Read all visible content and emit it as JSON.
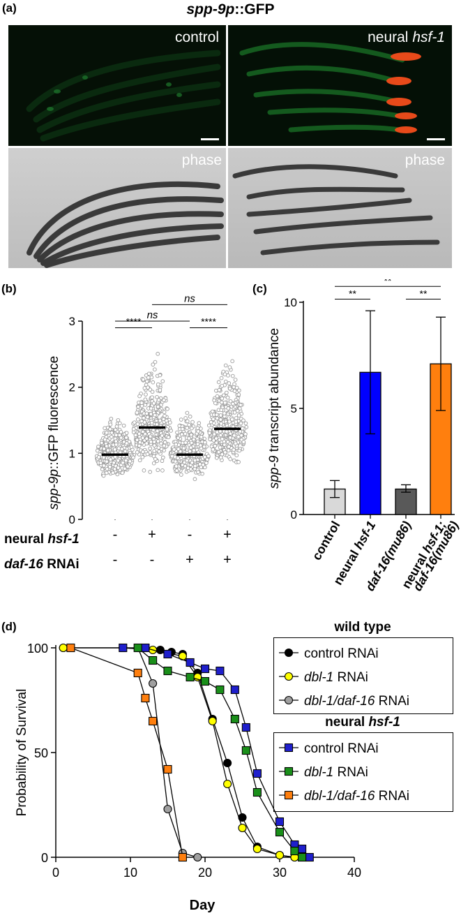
{
  "panel_a": {
    "letter": "(a)",
    "title_italic": "spp-9p",
    "title_rest": "::GFP",
    "label_control": "control",
    "label_neural_prefix": "neural ",
    "label_neural_gene": "hsf-1",
    "label_phase_left": "phase",
    "label_phase_right": "phase"
  },
  "panel_b": {
    "letter": "(b)",
    "chart_data": {
      "type": "scatter",
      "ylabel_italic": "spp-9p",
      "ylabel_rest": "::GFP fluorescence",
      "ylim": [
        0,
        3
      ],
      "yticks": [
        "0",
        "1",
        "2",
        "3"
      ],
      "groups": [
        {
          "neural_hsf1": "-",
          "daf16_rnai": "-",
          "median": 0.98,
          "range": [
            0.6,
            1.66
          ]
        },
        {
          "neural_hsf1": "+",
          "daf16_rnai": "-",
          "median": 1.39,
          "range": [
            0.65,
            2.65
          ]
        },
        {
          "neural_hsf1": "-",
          "daf16_rnai": "+",
          "median": 0.98,
          "range": [
            0.59,
            1.76
          ]
        },
        {
          "neural_hsf1": "+",
          "daf16_rnai": "+",
          "median": 1.37,
          "range": [
            0.7,
            2.57
          ]
        }
      ],
      "row_label_1_prefix": "neural ",
      "row_label_1_gene": "hsf-1",
      "row_label_2_gene": "daf-16",
      "row_label_2_rest": " RNAi",
      "significance": [
        {
          "from": 0,
          "to": 1,
          "label": "****",
          "y": 2.9
        },
        {
          "from": 0,
          "to": 2,
          "label": "ns",
          "y": 3.0
        },
        {
          "from": 1,
          "to": 3,
          "label": "ns",
          "y": 3.25
        },
        {
          "from": 2,
          "to": 3,
          "label": "****",
          "y": 2.9
        }
      ]
    }
  },
  "panel_c": {
    "letter": "(c)",
    "chart_data": {
      "type": "bar",
      "ylabel_italic": "spp-9",
      "ylabel_rest": " transcript abundance",
      "ylim": [
        0,
        10
      ],
      "yticks": [
        "0",
        "5",
        "10"
      ],
      "bars": [
        {
          "label": "control",
          "value": 1.2,
          "err_low": 0.8,
          "err_high": 1.6,
          "color": "#d9d9d9"
        },
        {
          "label": "neural hsf-1",
          "value": 6.7,
          "err_low": 3.8,
          "err_high": 9.6,
          "color": "#0000ff"
        },
        {
          "label": "daf-16(mu86)",
          "value": 1.2,
          "err_low": 1.05,
          "err_high": 1.4,
          "color": "#595959"
        },
        {
          "label": "neural hsf-1;daf-16(mu86)",
          "value": 7.1,
          "err_low": 4.9,
          "err_high": 9.3,
          "color": "#ff7f0e"
        }
      ],
      "tick_labels": [
        {
          "parts": [
            {
              "t": "control",
              "i": false
            }
          ]
        },
        {
          "parts": [
            {
              "t": "neural ",
              "i": false
            },
            {
              "t": "hsf-1",
              "i": true
            }
          ]
        },
        {
          "parts": [
            {
              "t": "daf-16(",
              "i": true
            },
            {
              "t": "mu86",
              "i": true
            },
            {
              "t": ")",
              "i": true
            }
          ]
        },
        {
          "parts": [
            {
              "t": "neural ",
              "i": false
            },
            {
              "t": "hsf-1;",
              "i": true
            }
          ],
          "parts2": [
            {
              "t": "daf-16(mu86)",
              "i": true
            }
          ]
        }
      ],
      "significance": [
        {
          "from": 0,
          "to": 1,
          "label": "**",
          "y": 10.15
        },
        {
          "from": 0,
          "to": 3,
          "label": "**",
          "y": 10.75
        },
        {
          "from": 2,
          "to": 3,
          "label": "**",
          "y": 10.15
        }
      ]
    }
  },
  "panel_d": {
    "letter": "(d)",
    "chart_data": {
      "type": "line",
      "xlabel": "Day",
      "ylabel": "Probability of Survival",
      "xlim": [
        0,
        40
      ],
      "ylim": [
        0,
        100
      ],
      "xticks": [
        "0",
        "10",
        "20",
        "30",
        "40"
      ],
      "yticks": [
        "0",
        "50",
        "100"
      ],
      "legend_group_1": "wild type",
      "legend_group_2_prefix": "neural ",
      "legend_group_2_gene": "hsf-1",
      "series": [
        {
          "name": "control RNAi",
          "group": 1,
          "marker": "circle",
          "color": "#000000",
          "x": [
            1,
            9,
            14,
            15.5,
            17,
            19,
            21,
            23,
            25,
            27,
            30,
            32
          ],
          "y": [
            100,
            100,
            99,
            98,
            97,
            88,
            66,
            45,
            19,
            5,
            1,
            0
          ]
        },
        {
          "name_italic": "dbl-1",
          "name": "dbl-1 RNAi",
          "group": 1,
          "marker": "circle",
          "color": "#ffff00",
          "x": [
            1,
            9,
            13,
            17,
            19,
            21,
            23,
            25,
            27,
            30,
            32
          ],
          "y": [
            100,
            100,
            99,
            96,
            86,
            65,
            35,
            14,
            4,
            1,
            0
          ]
        },
        {
          "name_italic": "dbl-1/daf-16",
          "name": "dbl-1/daf-16 RNAi",
          "group": 1,
          "marker": "circle",
          "color": "#a0a0a0",
          "x": [
            2,
            11,
            13,
            15,
            17,
            19
          ],
          "y": [
            100,
            100,
            83,
            23,
            2,
            0
          ]
        },
        {
          "name": "control RNAi",
          "group": 2,
          "marker": "square",
          "color": "#1f1fcc",
          "x": [
            9,
            12,
            15,
            18,
            20,
            22,
            24,
            25.5,
            27,
            30,
            32,
            33,
            34
          ],
          "y": [
            100,
            100,
            97,
            93,
            90,
            89,
            80,
            62,
            40,
            17,
            6,
            4,
            0
          ]
        },
        {
          "name_italic": "dbl-1",
          "name": "dbl-1 RNAi",
          "group": 2,
          "marker": "square",
          "color": "#1a8f1a",
          "x": [
            11,
            13,
            15,
            18,
            20,
            22,
            24,
            25.5,
            27,
            30,
            32,
            33
          ],
          "y": [
            100,
            94,
            89,
            86,
            84,
            80,
            66,
            51,
            31,
            12,
            3,
            0
          ]
        },
        {
          "name_italic": "dbl-1/daf-16",
          "name": "dbl-1/daf-16 RNAi",
          "group": 2,
          "marker": "square",
          "color": "#ff7f0e",
          "x": [
            2,
            11,
            12,
            13,
            15,
            17
          ],
          "y": [
            100,
            88,
            76,
            65,
            42,
            0
          ]
        }
      ]
    }
  }
}
